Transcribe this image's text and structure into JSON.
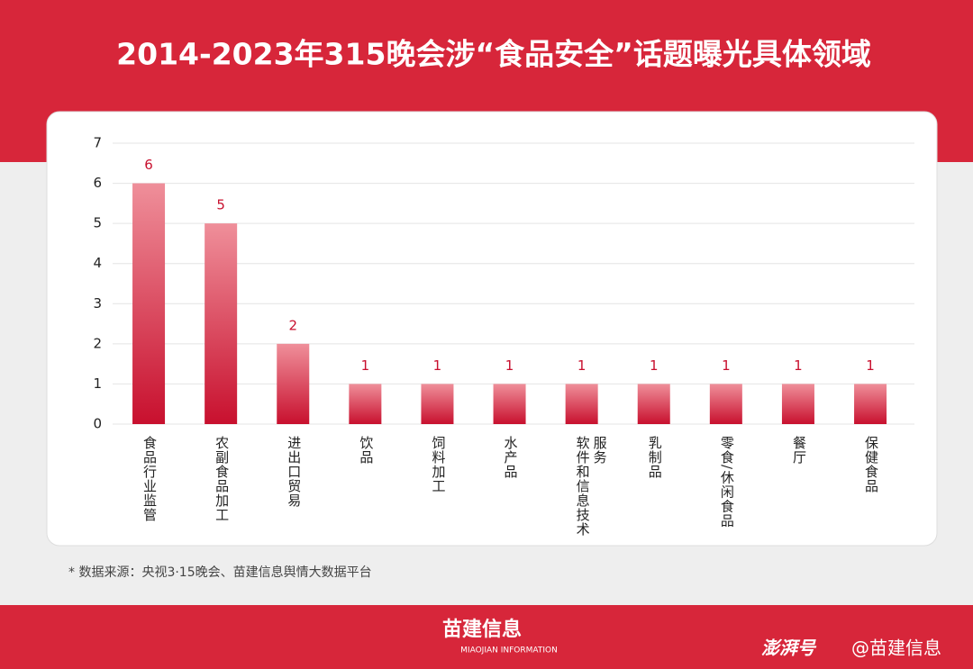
{
  "chart_data": {
    "type": "bar",
    "title": "2014-2023年315晚会涉“食品安全”话题曝光具体领域",
    "categories": [
      "食品行业监管",
      "农副食品加工",
      "进出口贸易",
      "饮品",
      "饲料加工",
      "水产品",
      "软件和信息技术服务",
      "乳制品",
      "零食/休闲食品",
      "餐厅",
      "保健食品"
    ],
    "values": [
      6,
      5,
      2,
      1,
      1,
      1,
      1,
      1,
      1,
      1,
      1
    ],
    "color": "#d0192e",
    "ylim": [
      0,
      7
    ],
    "yticks": [
      0,
      1,
      2,
      3,
      4,
      5,
      6,
      7
    ],
    "grid": true,
    "source": "* 数据来源：央视3·15晚会、苗建信息舆情大数据平台"
  },
  "footer": {
    "brand": "苗建信息",
    "brand_en": "MIAOJIAN INFORMATION",
    "platform": "澎湃号",
    "account": "@苗建信息"
  }
}
